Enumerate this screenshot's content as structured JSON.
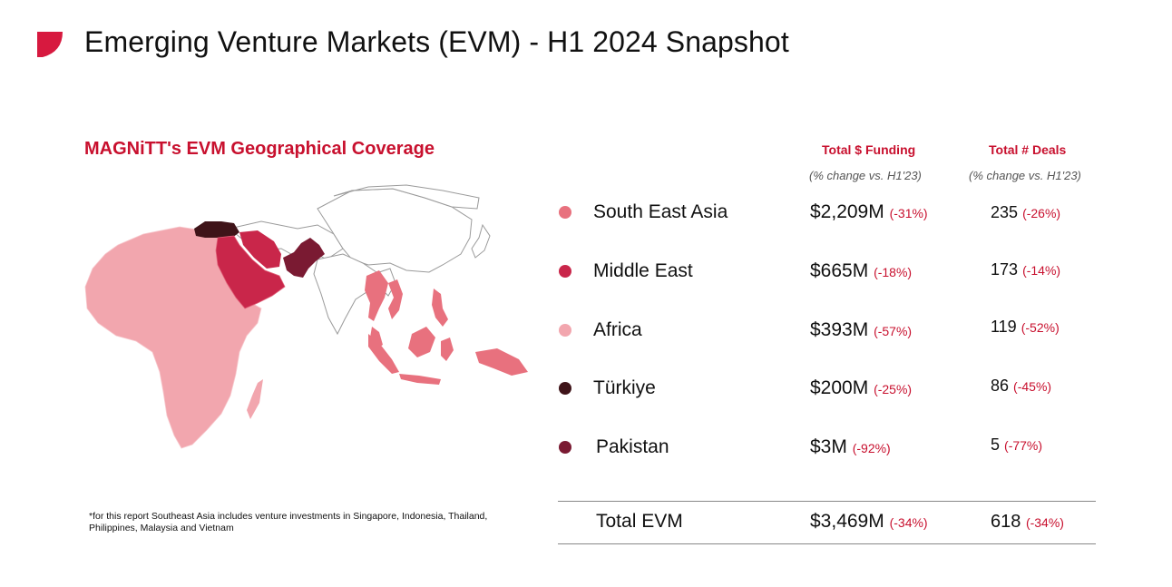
{
  "header": {
    "title": "Emerging Venture Markets (EVM) - H1 2024 Snapshot",
    "logo_icon": "brand-logo-icon",
    "accent_color": "#d7193f"
  },
  "map": {
    "title": "MAGNiTT's EVM Geographical Coverage"
  },
  "table": {
    "col_funding_header": "Total $ Funding",
    "col_funding_sub": "(% change vs. H1'23)",
    "col_deals_header": "Total # Deals",
    "col_deals_sub": "(% change vs. H1'23)",
    "rows": [
      {
        "region": "South East Asia",
        "color": "#e8717e",
        "funding": "$2,209M",
        "funding_change": "(-31%)",
        "deals": "235",
        "deals_change": "(-26%)"
      },
      {
        "region": "Middle East",
        "color": "#c9264a",
        "funding": "$665M",
        "funding_change": "(-18%)",
        "deals": "173",
        "deals_change": "(-14%)"
      },
      {
        "region": "Africa",
        "color": "#f2a6ae",
        "funding": "$393M",
        "funding_change": "(-57%)",
        "deals": "119",
        "deals_change": "(-52%)"
      },
      {
        "region": "Türkiye",
        "color": "#3f1419",
        "funding": "$200M",
        "funding_change": "(-25%)",
        "deals": "86",
        "deals_change": "(-45%)"
      },
      {
        "region": "Pakistan",
        "color": "#7a1a32",
        "funding": "$3M",
        "funding_change": "(-92%)",
        "deals": "5",
        "deals_change": "(-77%)"
      }
    ],
    "total": {
      "label": "Total EVM",
      "funding": "$3,469M",
      "funding_change": "(-34%)",
      "deals": "618",
      "deals_change": "(-34%)"
    }
  },
  "footnote": "*for this report Southeast Asia includes venture investments in Singapore, Indonesia, Thailand, Philippines, Malaysia and Vietnam"
}
